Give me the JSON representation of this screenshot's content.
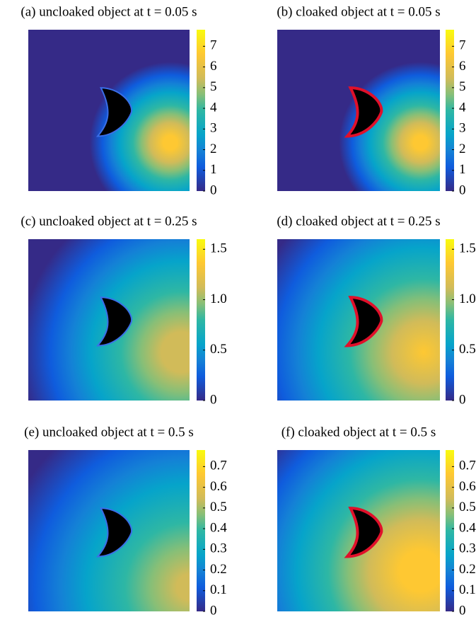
{
  "chart_data": [
    {
      "type": "heatmap",
      "title": "(a) uncloaked object at t = 0.05 s",
      "clim": [
        0,
        7.8
      ],
      "cloaked": false,
      "yticks": [
        0,
        1,
        2,
        3,
        4,
        5,
        6,
        7
      ]
    },
    {
      "type": "heatmap",
      "title": "(b) cloaked object at t = 0.05 s",
      "clim": [
        0,
        7.8
      ],
      "cloaked": true,
      "yticks": [
        0,
        1,
        2,
        3,
        4,
        5,
        6,
        7
      ]
    },
    {
      "type": "heatmap",
      "title": "(c) uncloaked object at t = 0.25 s",
      "clim": [
        0,
        1.6
      ],
      "cloaked": false,
      "yticks": [
        0,
        0.5,
        {
          "value": 1,
          "label": "1.0"
        },
        1.5
      ]
    },
    {
      "type": "heatmap",
      "title": "(d) cloaked object at t = 0.25 s",
      "clim": [
        0,
        1.6
      ],
      "cloaked": true,
      "yticks": [
        0,
        0.5,
        {
          "value": 1,
          "label": "1.0"
        },
        1.5
      ]
    },
    {
      "type": "heatmap",
      "title": "(e) uncloaked object at t = 0.5 s",
      "clim": [
        0,
        0.78
      ],
      "cloaked": false,
      "yticks": [
        0,
        0.1,
        0.2,
        0.3,
        0.4,
        0.5,
        0.6,
        0.7
      ]
    },
    {
      "type": "heatmap",
      "title": "(f) cloaked object at t = 0.5 s",
      "clim": [
        0,
        0.78
      ],
      "cloaked": true,
      "yticks": [
        0,
        0.1,
        0.2,
        0.3,
        0.4,
        0.5,
        0.6,
        0.7
      ]
    }
  ]
}
